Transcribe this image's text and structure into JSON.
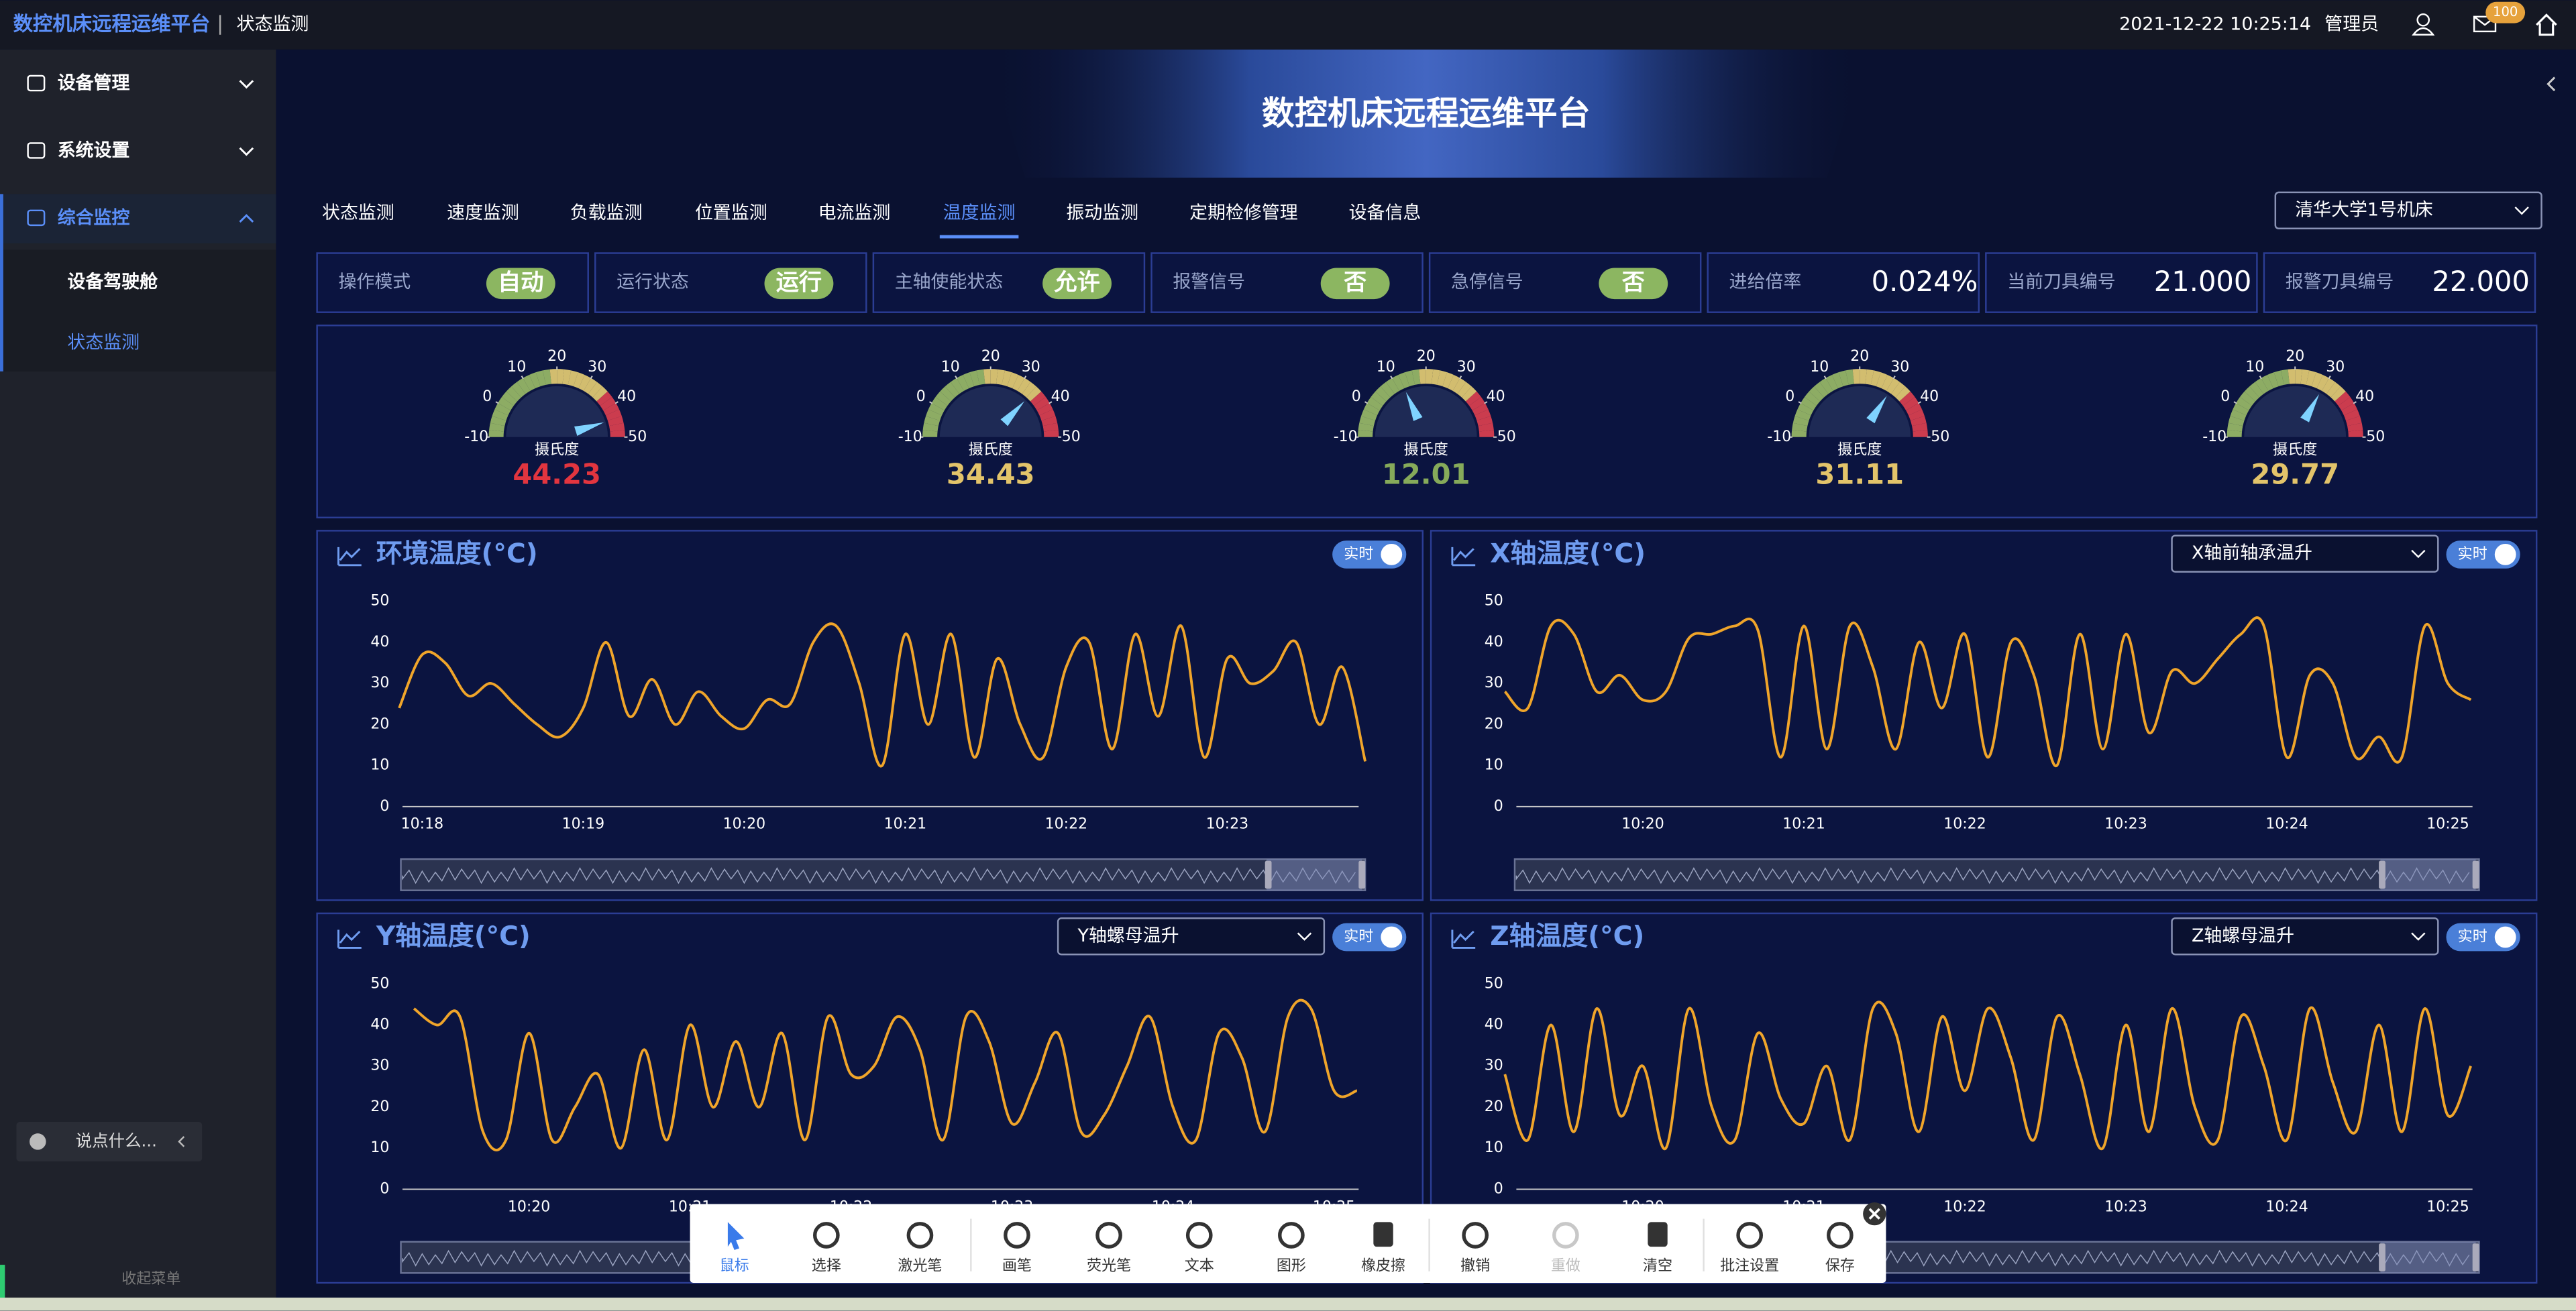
{
  "header": {
    "title": "数控机床远程运维平台",
    "page": "状态监测",
    "datetime": "2021-12-22  10:25:14",
    "user": "管理员",
    "badge": "100"
  },
  "sidebar": {
    "items": [
      {
        "label": "设备管理"
      },
      {
        "label": "系统设置"
      },
      {
        "label": "综合监控",
        "children": [
          "设备驾驶舱",
          "状态监测"
        ]
      }
    ],
    "chat": "说点什么...",
    "collapse": "收起菜单"
  },
  "banner": "数控机床远程运维平台",
  "tabs": [
    "状态监测",
    "速度监测",
    "负载监测",
    "位置监测",
    "电流监测",
    "温度监测",
    "振动监测",
    "定期检修管理",
    "设备信息"
  ],
  "active_tab": 5,
  "machine_select": "清华大学1号机床",
  "status": [
    {
      "label": "操作模式",
      "badge": "自动"
    },
    {
      "label": "运行状态",
      "badge": "运行"
    },
    {
      "label": "主轴使能状态",
      "badge": "允许"
    },
    {
      "label": "报警信号",
      "badge": "否"
    },
    {
      "label": "急停信号",
      "badge": "否"
    },
    {
      "label": "进给倍率",
      "value": "0.024%"
    },
    {
      "label": "当前刀具编号",
      "value": "21.000"
    },
    {
      "label": "报警刀具编号",
      "value": "22.000"
    }
  ],
  "gauges": {
    "unit": "摄氏度",
    "range": [
      -10,
      50
    ],
    "ticks": [
      -10,
      0,
      10,
      20,
      30,
      40,
      50
    ],
    "values": [
      44.23,
      34.43,
      12.01,
      31.11,
      29.77
    ],
    "value_colors": [
      "#e2353f",
      "#e3c46a",
      "#86aa5a",
      "#e3c46a",
      "#e3c46a"
    ]
  },
  "chart_data": [
    {
      "type": "line",
      "title": "环境温度(°C)",
      "toggle": "实时",
      "color": "#f0a52a",
      "ylim": [
        0,
        50
      ],
      "yticks": [
        0,
        10,
        20,
        30,
        40,
        50
      ],
      "categories": [
        null,
        "10:18",
        null,
        null,
        null,
        null,
        null,
        null,
        "10:19",
        null,
        null,
        null,
        null,
        null,
        null,
        "10:20",
        null,
        null,
        null,
        null,
        null,
        null,
        "10:21",
        null,
        null,
        null,
        null,
        null,
        null,
        "10:22",
        null,
        null,
        null,
        null,
        null,
        null,
        "10:23",
        null,
        null,
        null,
        null,
        null,
        null
      ],
      "values": [
        24,
        37,
        35,
        27,
        30,
        25,
        20,
        17,
        24,
        40,
        22,
        31,
        20,
        28,
        22,
        19,
        26,
        25,
        40,
        44,
        30,
        10,
        42,
        20,
        42,
        12,
        36,
        20,
        12,
        34,
        40,
        14,
        42,
        22,
        44,
        12,
        36,
        30,
        33,
        40,
        20,
        34,
        11
      ]
    },
    {
      "type": "line",
      "title": "X轴温度(°C)",
      "select": "X轴前轴承温升",
      "toggle": "实时",
      "color": "#f0a52a",
      "ylim": [
        0,
        50
      ],
      "yticks": [
        0,
        10,
        20,
        30,
        40,
        50
      ],
      "categories": [
        null,
        null,
        null,
        null,
        null,
        null,
        "10:20",
        null,
        null,
        null,
        null,
        null,
        null,
        "10:21",
        null,
        null,
        null,
        null,
        null,
        null,
        "10:22",
        null,
        null,
        null,
        null,
        null,
        null,
        "10:23",
        null,
        null,
        null,
        null,
        null,
        null,
        "10:24",
        null,
        null,
        null,
        null,
        null,
        null,
        "10:25",
        null
      ],
      "values": [
        28,
        24,
        44,
        42,
        28,
        32,
        26,
        28,
        41,
        42,
        44,
        43,
        12,
        44,
        14,
        44,
        34,
        14,
        40,
        24,
        42,
        12,
        40,
        32,
        10,
        42,
        14,
        42,
        18,
        33,
        30,
        36,
        42,
        44,
        12,
        32,
        30,
        12,
        17,
        12,
        44,
        30,
        26
      ]
    },
    {
      "type": "line",
      "title": "Y轴温度(°C)",
      "select": "Y轴螺母温升",
      "toggle": "实时",
      "color": "#f0a52a",
      "ylim": [
        0,
        50
      ],
      "yticks": [
        0,
        10,
        20,
        30,
        40,
        50
      ],
      "categories": [
        null,
        null,
        null,
        null,
        null,
        "10:20",
        null,
        null,
        null,
        null,
        null,
        null,
        "10:21",
        null,
        null,
        null,
        null,
        null,
        null,
        "10:22",
        null,
        null,
        null,
        null,
        null,
        null,
        "10:23",
        null,
        null,
        null,
        null,
        null,
        null,
        "10:24",
        null,
        null,
        null,
        null,
        null,
        null,
        "10:25",
        null
      ],
      "values": [
        44,
        40,
        42,
        14,
        12,
        38,
        12,
        20,
        28,
        10,
        34,
        12,
        40,
        20,
        36,
        20,
        38,
        12,
        42,
        28,
        30,
        42,
        34,
        12,
        42,
        36,
        16,
        26,
        38,
        14,
        18,
        30,
        42,
        20,
        12,
        38,
        32,
        14,
        42,
        44,
        24,
        24
      ]
    },
    {
      "type": "line",
      "title": "Z轴温度(°C)",
      "select": "Z轴螺母温升",
      "toggle": "实时",
      "color": "#f0a52a",
      "ylim": [
        0,
        50
      ],
      "yticks": [
        0,
        10,
        20,
        30,
        40,
        50
      ],
      "categories": [
        null,
        null,
        null,
        null,
        null,
        null,
        "10:20",
        null,
        null,
        null,
        null,
        null,
        null,
        "10:21",
        null,
        null,
        null,
        null,
        null,
        null,
        "10:22",
        null,
        null,
        null,
        null,
        null,
        null,
        "10:23",
        null,
        null,
        null,
        null,
        null,
        null,
        "10:24",
        null,
        null,
        null,
        null,
        null,
        null,
        "10:25",
        null
      ],
      "values": [
        28,
        12,
        40,
        14,
        44,
        18,
        30,
        10,
        44,
        20,
        12,
        38,
        22,
        16,
        30,
        12,
        44,
        38,
        14,
        42,
        24,
        44,
        32,
        12,
        42,
        28,
        10,
        40,
        14,
        44,
        20,
        12,
        42,
        30,
        12,
        44,
        26,
        14,
        40,
        14,
        44,
        18,
        30
      ]
    }
  ],
  "toolbar": [
    "鼠标",
    "选择",
    "激光笔",
    "画笔",
    "荧光笔",
    "文本",
    "图形",
    "橡皮擦",
    "撤销",
    "重做",
    "清空",
    "批注设置",
    "保存"
  ]
}
